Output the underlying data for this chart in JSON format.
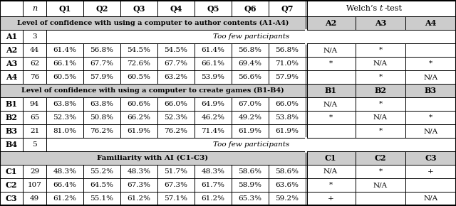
{
  "section_A_title": "Level of confidence with using a computer to author contents (A1-A4)",
  "section_B_title": "Level of confidence with using a computer to create games (B1-B4)",
  "section_C_title": "Familiarity with AI (C1-C3)",
  "rows_A": [
    [
      "A1",
      "3",
      "Too few participants",
      "",
      "",
      "",
      "",
      "",
      "",
      "",
      "",
      ""
    ],
    [
      "A2",
      "44",
      "61.4%",
      "56.8%",
      "54.5%",
      "54.5%",
      "61.4%",
      "56.8%",
      "56.8%",
      "N/A",
      "*",
      ""
    ],
    [
      "A3",
      "62",
      "66.1%",
      "67.7%",
      "72.6%",
      "67.7%",
      "66.1%",
      "69.4%",
      "71.0%",
      "*",
      "N/A",
      "*"
    ],
    [
      "A4",
      "76",
      "60.5%",
      "57.9%",
      "60.5%",
      "63.2%",
      "53.9%",
      "56.6%",
      "57.9%",
      "",
      "*",
      "N/A"
    ]
  ],
  "rows_B": [
    [
      "B1",
      "94",
      "63.8%",
      "63.8%",
      "60.6%",
      "66.0%",
      "64.9%",
      "67.0%",
      "66.0%",
      "N/A",
      "*",
      ""
    ],
    [
      "B2",
      "65",
      "52.3%",
      "50.8%",
      "66.2%",
      "52.3%",
      "46.2%",
      "49.2%",
      "53.8%",
      "*",
      "N/A",
      "*"
    ],
    [
      "B3",
      "21",
      "81.0%",
      "76.2%",
      "61.9%",
      "76.2%",
      "71.4%",
      "61.9%",
      "61.9%",
      "",
      "*",
      "N/A"
    ],
    [
      "B4",
      "5",
      "Too few participants",
      "",
      "",
      "",
      "",
      "",
      "",
      "",
      "",
      ""
    ]
  ],
  "rows_C": [
    [
      "C1",
      "29",
      "48.3%",
      "55.2%",
      "48.3%",
      "51.7%",
      "48.3%",
      "58.6%",
      "58.6%",
      "N/A",
      "*",
      "+"
    ],
    [
      "C2",
      "107",
      "66.4%",
      "64.5%",
      "67.3%",
      "67.3%",
      "61.7%",
      "58.9%",
      "63.6%",
      "*",
      "N/A",
      ""
    ],
    [
      "C3",
      "49",
      "61.2%",
      "55.1%",
      "61.2%",
      "57.1%",
      "61.2%",
      "65.3%",
      "59.2%",
      "+",
      "",
      "N/A"
    ]
  ]
}
